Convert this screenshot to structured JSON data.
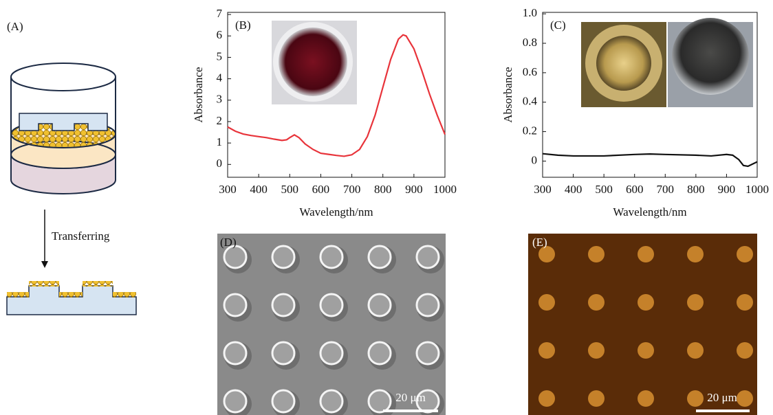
{
  "panel_labels": [
    "(A)",
    "(B)",
    "(C)",
    "(D)",
    "(E)"
  ],
  "diagram": {
    "arrow_label": "Transferring"
  },
  "scale_bars": [
    "20 μm",
    "20 μm"
  ],
  "chart_data": [
    {
      "type": "line",
      "y_label": "Absorbance",
      "x_label": "Wavelength/nm",
      "xlim": [
        300,
        1000
      ],
      "xticks": [
        300,
        400,
        500,
        600,
        700,
        800,
        900,
        1000
      ],
      "ylim": [
        -0.6,
        7.1
      ],
      "yticks": [
        0,
        1,
        2,
        3,
        4,
        5,
        6,
        7
      ],
      "series": [
        {
          "color": "#e8333a",
          "x": [
            300,
            325,
            350,
            375,
            400,
            425,
            450,
            475,
            490,
            500,
            515,
            530,
            550,
            575,
            600,
            625,
            650,
            675,
            700,
            725,
            750,
            775,
            800,
            825,
            850,
            865,
            875,
            900,
            925,
            950,
            975,
            1000
          ],
          "values": [
            1.75,
            1.55,
            1.42,
            1.35,
            1.3,
            1.25,
            1.18,
            1.12,
            1.15,
            1.25,
            1.38,
            1.25,
            0.95,
            0.7,
            0.52,
            0.47,
            0.42,
            0.38,
            0.45,
            0.7,
            1.3,
            2.3,
            3.6,
            4.9,
            5.85,
            6.05,
            6.0,
            5.4,
            4.4,
            3.3,
            2.3,
            1.4
          ]
        }
      ]
    },
    {
      "type": "line",
      "y_label": "Absorbance",
      "x_label": "Wavelength/nm",
      "xlim": [
        300,
        1000
      ],
      "xticks": [
        300,
        400,
        500,
        600,
        700,
        800,
        900,
        1000
      ],
      "ylim": [
        -0.11,
        1.01
      ],
      "yticks": [
        0,
        0.2,
        0.4,
        0.6,
        0.8,
        {
          "value": 1,
          "label": "1.0"
        }
      ],
      "series": [
        {
          "color": "#111111",
          "x": [
            300,
            350,
            400,
            500,
            600,
            650,
            700,
            800,
            850,
            900,
            920,
            940,
            955,
            970,
            985,
            1000
          ],
          "values": [
            0.05,
            0.04,
            0.035,
            0.035,
            0.045,
            0.048,
            0.045,
            0.04,
            0.035,
            0.045,
            0.04,
            0.01,
            -0.03,
            -0.035,
            -0.02,
            -0.005
          ]
        }
      ]
    }
  ]
}
